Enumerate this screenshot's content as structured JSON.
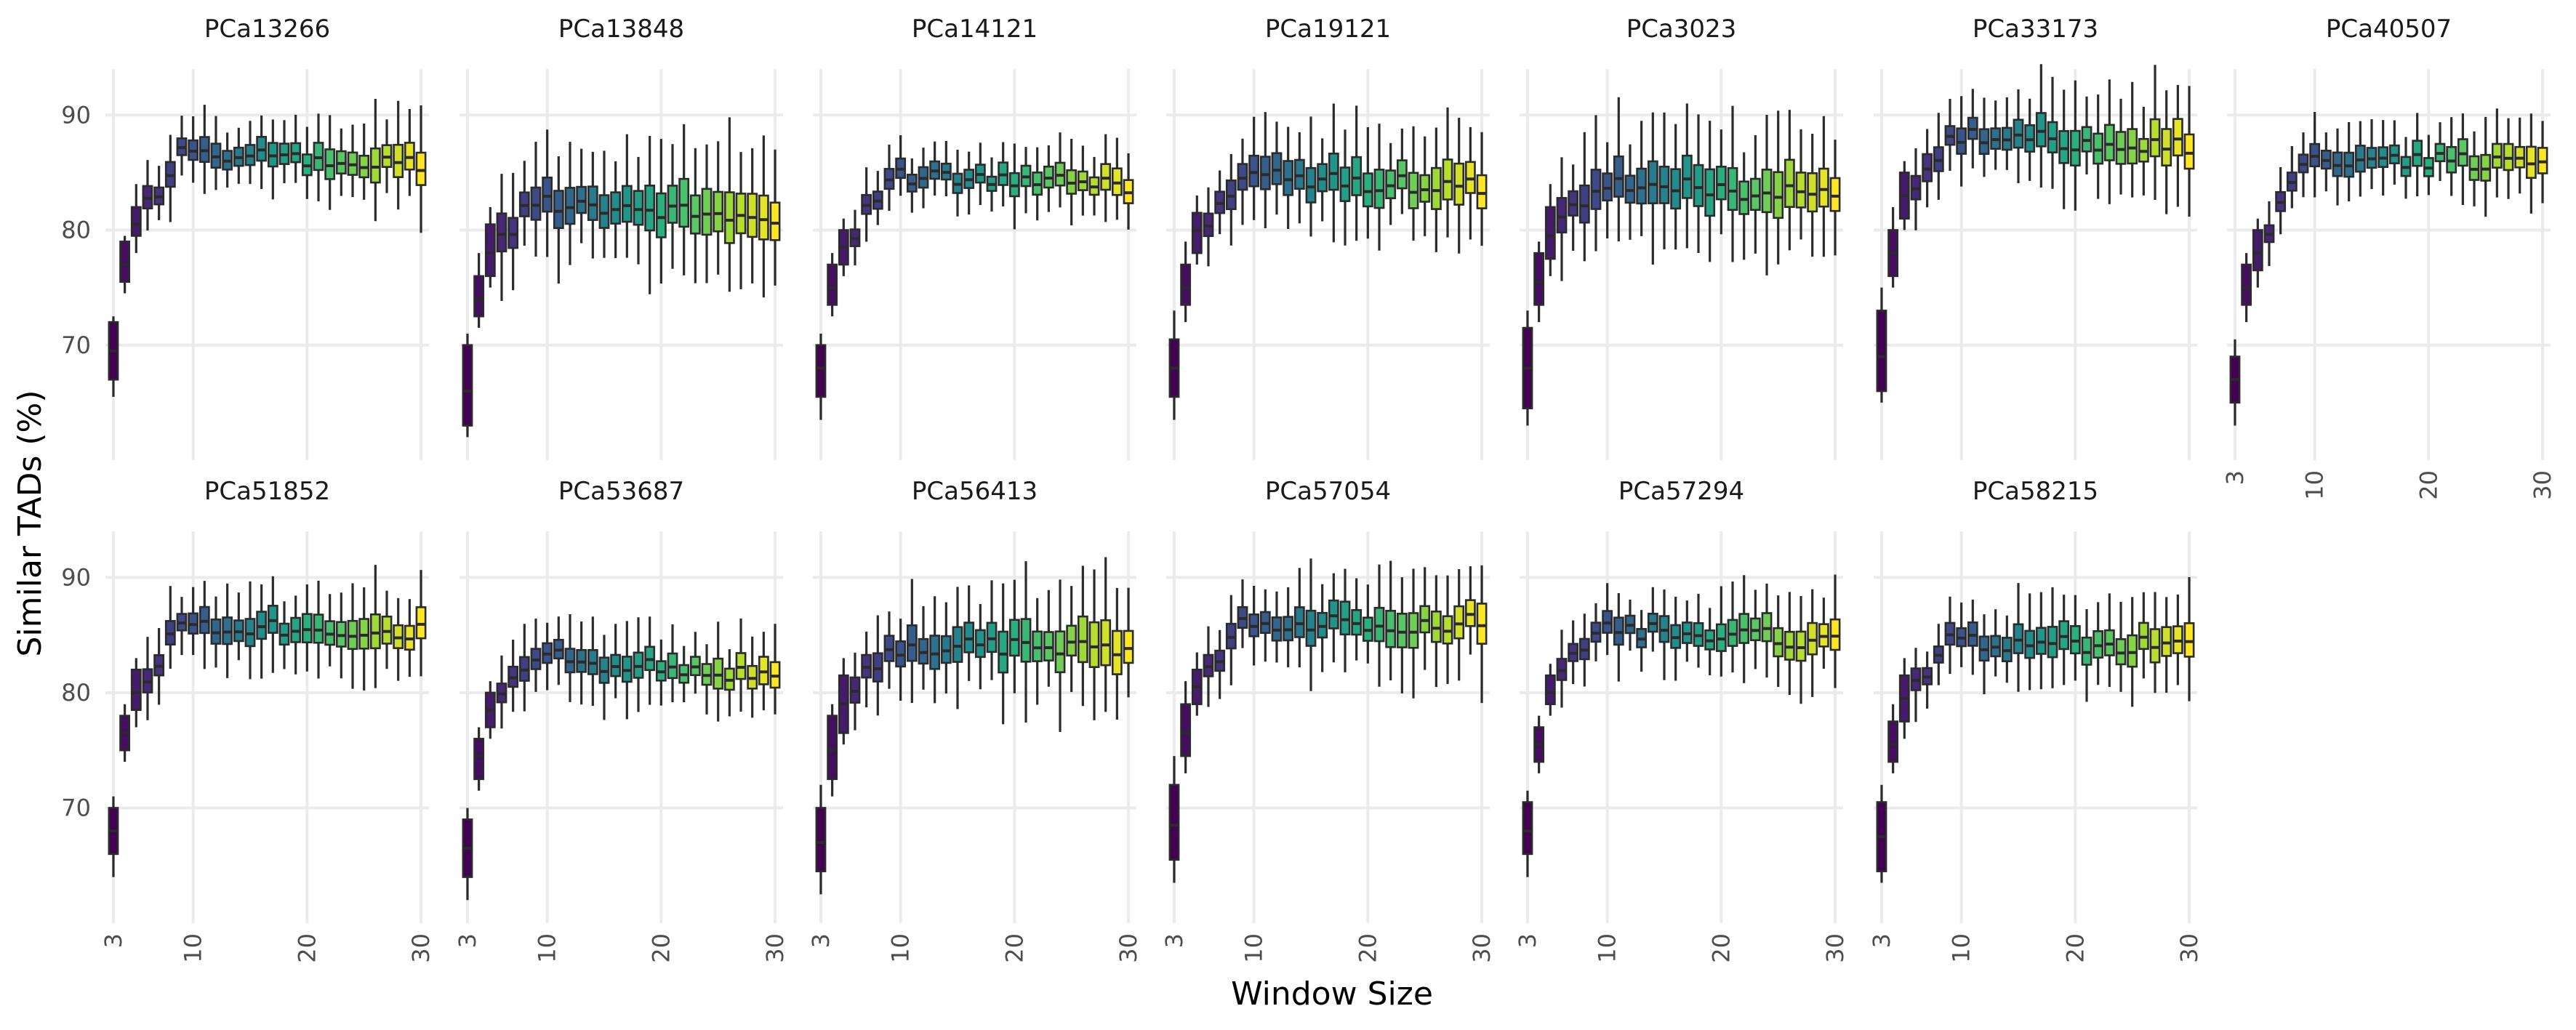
{
  "chart_data": {
    "type": "box",
    "title": "",
    "xlabel": "Window Size",
    "ylabel": "Similar TADs (%)",
    "x": [
      3,
      4,
      5,
      6,
      7,
      8,
      9,
      10,
      11,
      12,
      13,
      14,
      15,
      16,
      17,
      18,
      19,
      20,
      21,
      22,
      23,
      24,
      25,
      26,
      27,
      28,
      29,
      30
    ],
    "xlim": [
      2.3,
      30.7
    ],
    "ylim": [
      60,
      94
    ],
    "xticks": [
      3,
      10,
      20,
      30
    ],
    "yticks": [
      70,
      80,
      90
    ],
    "grid": true,
    "legend": "none",
    "box_colors": {
      "palette": "viridis",
      "start": "#440154",
      "end": "#fde725"
    },
    "panels": [
      {
        "name": "PCa13266",
        "first": [
          65.5,
          67,
          69.5,
          72,
          72.5
        ],
        "second": [
          74.5,
          75.5,
          77,
          79,
          79.5
        ],
        "third": [
          78,
          79.5,
          80.5,
          82,
          84
        ],
        "plateau": 86.5,
        "trend": -0.05,
        "spread": 2.0
      },
      {
        "name": "PCa13848",
        "first": [
          62,
          63,
          66,
          70,
          71
        ],
        "second": [
          71.5,
          72.5,
          74,
          76,
          78
        ],
        "third": [
          75,
          76,
          78,
          80.5,
          82
        ],
        "plateau": 82.5,
        "trend": -0.08,
        "spread": 3.0
      },
      {
        "name": "PCa14121",
        "first": [
          63.5,
          65.5,
          68,
          70,
          71
        ],
        "second": [
          72.5,
          73.5,
          75,
          77,
          78
        ],
        "third": [
          76,
          77,
          78.5,
          80,
          81
        ],
        "plateau": 84.5,
        "trend": -0.03,
        "spread": 1.5
      },
      {
        "name": "PCa19121",
        "first": [
          63.5,
          65.5,
          68,
          70.5,
          73
        ],
        "second": [
          72,
          73.5,
          75,
          77,
          79
        ],
        "third": [
          77,
          78,
          80,
          81.5,
          83
        ],
        "plateau": 84.5,
        "trend": -0.04,
        "spread": 2.5
      },
      {
        "name": "PCa3023",
        "first": [
          63,
          64.5,
          68,
          71.5,
          73
        ],
        "second": [
          72,
          73.5,
          75.5,
          78,
          79
        ],
        "third": [
          76,
          77.5,
          79.5,
          82,
          84
        ],
        "plateau": 84,
        "trend": -0.05,
        "spread": 3.0
      },
      {
        "name": "PCa33173",
        "first": [
          65,
          66,
          69,
          73,
          75
        ],
        "second": [
          75,
          76,
          78,
          80,
          82
        ],
        "third": [
          80,
          81,
          83,
          85,
          86
        ],
        "plateau": 88,
        "trend": -0.03,
        "spread": 2.2
      },
      {
        "name": "PCa40507",
        "first": [
          63,
          65,
          67,
          69,
          70.5
        ],
        "second": [
          72,
          73.5,
          75,
          77,
          78
        ],
        "third": [
          75,
          76.5,
          78,
          80,
          81
        ],
        "plateau": 86,
        "trend": 0.0,
        "spread": 1.8
      },
      {
        "name": "PCa51852",
        "first": [
          64,
          66,
          68,
          70,
          71
        ],
        "second": [
          74,
          75,
          76.5,
          78,
          79
        ],
        "third": [
          77,
          78.5,
          80,
          82,
          83
        ],
        "plateau": 86,
        "trend": -0.04,
        "spread": 2.0
      },
      {
        "name": "PCa53687",
        "first": [
          62,
          64,
          66.5,
          69,
          70
        ],
        "second": [
          71.5,
          72.5,
          74.5,
          76,
          77
        ],
        "third": [
          76,
          77,
          78.5,
          80,
          81
        ],
        "plateau": 83,
        "trend": -0.08,
        "spread": 1.8
      },
      {
        "name": "PCa56413",
        "first": [
          62.5,
          64.5,
          67,
          70,
          72
        ],
        "second": [
          71,
          72.5,
          75,
          78,
          79
        ],
        "third": [
          75.5,
          76.5,
          79,
          81.5,
          83
        ],
        "plateau": 84,
        "trend": 0.0,
        "spread": 2.8
      },
      {
        "name": "PCa57054",
        "first": [
          63.5,
          65.5,
          68.5,
          72,
          74.5
        ],
        "second": [
          73,
          74.5,
          76.5,
          79,
          81
        ],
        "third": [
          78,
          79,
          80.5,
          82,
          83.5
        ],
        "plateau": 86,
        "trend": 0.0,
        "spread": 2.4
      },
      {
        "name": "PCa57294",
        "first": [
          64,
          66,
          68,
          70.5,
          71.5
        ],
        "second": [
          73,
          74,
          75.5,
          77,
          78
        ],
        "third": [
          78,
          79,
          80,
          81.5,
          82.5
        ],
        "plateau": 85.5,
        "trend": -0.05,
        "spread": 2.0
      },
      {
        "name": "PCa58215",
        "first": [
          63.5,
          64.5,
          67.5,
          70.5,
          72
        ],
        "second": [
          73,
          74,
          75.5,
          77.5,
          79
        ],
        "third": [
          76,
          77.5,
          79.5,
          81.5,
          83
        ],
        "plateau": 84.5,
        "trend": -0.03,
        "spread": 2.0
      }
    ]
  }
}
